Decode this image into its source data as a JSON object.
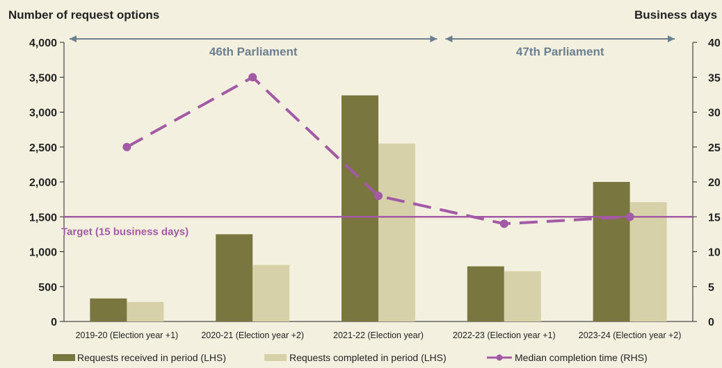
{
  "chart_data": {
    "type": "bar",
    "title_left": "Number of request options",
    "title_right": "Business days",
    "categories": [
      "2019-20 (Election year +1)",
      "2020-21 (Election year +2)",
      "2021-22 (Election year)",
      "2022-23 (Election year +1)",
      "2023-24 (Election year +2)"
    ],
    "series": [
      {
        "name": "Requests received in period (LHS)",
        "type": "bar",
        "axis": "left",
        "color": "#7a7640",
        "values": [
          330,
          1250,
          3240,
          790,
          2000
        ]
      },
      {
        "name": "Requests completed in period (LHS)",
        "type": "bar",
        "axis": "left",
        "color": "#d6d1a8",
        "values": [
          280,
          810,
          2550,
          720,
          1710
        ]
      },
      {
        "name": "Median completion time (RHS)",
        "type": "line",
        "axis": "right",
        "color": "#a35aa5",
        "dashed": true,
        "values": [
          25,
          35,
          18,
          14,
          15
        ]
      }
    ],
    "y_left": {
      "min": 0,
      "max": 4000,
      "ticks": [
        "0",
        "500",
        "1,000",
        "1,500",
        "2,000",
        "2,500",
        "3,000",
        "3,500",
        "4,000"
      ]
    },
    "y_right": {
      "min": 0,
      "max": 40,
      "ticks": [
        "0",
        "5",
        "10",
        "15",
        "20",
        "25",
        "30",
        "35",
        "40"
      ]
    },
    "target": {
      "label": "Target (15 business days)",
      "value": 15,
      "color": "#a35aa5"
    },
    "annotations": [
      {
        "label": "46th Parliament",
        "from_category": 0,
        "to_category": 2
      },
      {
        "label": "47th Parliament",
        "from_category": 3,
        "to_category": 4
      }
    ],
    "arrow_color": "#6b7f8f",
    "legend_position": "bottom"
  }
}
